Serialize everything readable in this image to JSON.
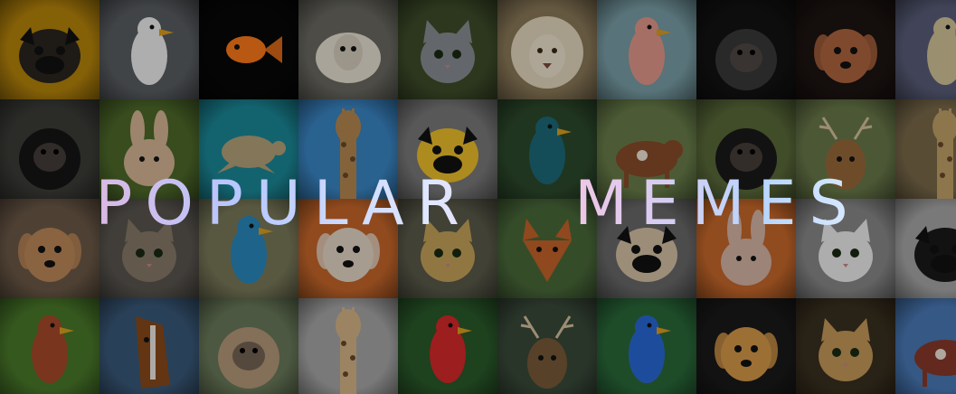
{
  "banner": {
    "title_word_1": "POPULAR",
    "title_word_2": "MEMES"
  },
  "tiles": [
    {
      "name": "pug-yellow-tile",
      "bg": "#b8860b",
      "fg": "#2a241f",
      "icon": "pug"
    },
    {
      "name": "puffin-tile",
      "bg": "#5b5f63",
      "fg": "#f2f2f2",
      "icon": "bird"
    },
    {
      "name": "goldfish-tile",
      "bg": "#070707",
      "fg": "#ff7a1a",
      "icon": "fish"
    },
    {
      "name": "sheep-tile",
      "bg": "#6b6a62",
      "fg": "#e9e3d6",
      "icon": "sheep"
    },
    {
      "name": "cat-grey-tile",
      "bg": "#3e4d2a",
      "fg": "#8a8f95",
      "icon": "cat"
    },
    {
      "name": "lion-white-tile",
      "bg": "#8c7a59",
      "fg": "#e7dac0",
      "icon": "lion"
    },
    {
      "name": "flamingo-tile",
      "bg": "#7aa0a8",
      "fg": "#e79a8d",
      "icon": "bird"
    },
    {
      "name": "gorilla-black-tile",
      "bg": "#121212",
      "fg": "#3a3a3a",
      "icon": "ape"
    },
    {
      "name": "puppy-tile",
      "bg": "#1d1411",
      "fg": "#b06640",
      "icon": "dog"
    },
    {
      "name": "bird-sky-tile",
      "bg": "#5a5f7a",
      "fg": "#d6c79a",
      "icon": "bird"
    },
    {
      "name": "gorilla-cave-tile",
      "bg": "#3c3c38",
      "fg": "#161616",
      "icon": "ape"
    },
    {
      "name": "rabbit-tile",
      "bg": "#4e6a2a",
      "fg": "#d8b996",
      "icon": "rabbit"
    },
    {
      "name": "turtle-tile",
      "bg": "#1b8a9a",
      "fg": "#b7a47a",
      "icon": "turtle"
    },
    {
      "name": "giraffe-sky-tile",
      "bg": "#3a87c7",
      "fg": "#b88a52",
      "icon": "giraffe"
    },
    {
      "name": "pug-raincoat-tile",
      "bg": "#7a7a7a",
      "fg": "#f0c12c",
      "icon": "pug"
    },
    {
      "name": "peacock-tile",
      "bg": "#2d4a2b",
      "fg": "#1d6b7a",
      "icon": "bird"
    },
    {
      "name": "cow-field-tile",
      "bg": "#6a7f4a",
      "fg": "#8a4b2a",
      "icon": "cow"
    },
    {
      "name": "tamarin-tile",
      "bg": "#5a6a3a",
      "fg": "#1a1a1a",
      "icon": "ape"
    },
    {
      "name": "deer-tile",
      "bg": "#6a7a4a",
      "fg": "#9a6a3a",
      "icon": "deer"
    },
    {
      "name": "giraffe-tall-tile",
      "bg": "#7a6a4a",
      "fg": "#c4a26a",
      "icon": "giraffe"
    },
    {
      "name": "dog-brown-tile",
      "bg": "#6d5a48",
      "fg": "#c08a5a",
      "icon": "dog"
    },
    {
      "name": "tabby-cat-tile",
      "bg": "#5a5650",
      "fg": "#8a7a6a",
      "icon": "cat"
    },
    {
      "name": "kingfisher-tile",
      "bg": "#7a7a5a",
      "fg": "#2a8ac0",
      "icon": "bird"
    },
    {
      "name": "chihuahua-tile",
      "bg": "#c8672a",
      "fg": "#e8d8c8",
      "icon": "dog"
    },
    {
      "name": "leopard-tile",
      "bg": "#5a5a4a",
      "fg": "#c8a65a",
      "icon": "cat"
    },
    {
      "name": "fox-tile",
      "bg": "#4a6a3a",
      "fg": "#c8652a",
      "icon": "fox"
    },
    {
      "name": "pug-tongue-tile",
      "bg": "#6a6a6a",
      "fg": "#d8c4a8",
      "icon": "pug"
    },
    {
      "name": "bunny-tile",
      "bg": "#c8682a",
      "fg": "#d8b8a8",
      "icon": "rabbit"
    },
    {
      "name": "white-cat-tile",
      "bg": "#8a8a8a",
      "fg": "#f0f0f0",
      "icon": "cat"
    },
    {
      "name": "pug-dark-tile",
      "bg": "#a8a8a8",
      "fg": "#1a1a1a",
      "icon": "pug"
    },
    {
      "name": "rooster-tile",
      "bg": "#4a7a2a",
      "fg": "#a84a2a",
      "icon": "bird"
    },
    {
      "name": "horse-tile",
      "bg": "#3a5a7a",
      "fg": "#8a4a1a",
      "icon": "horse"
    },
    {
      "name": "monkey-tile",
      "bg": "#6a7a5a",
      "fg": "#b89a7a",
      "icon": "ape"
    },
    {
      "name": "giraffe-face-tile",
      "bg": "#a8a8a8",
      "fg": "#d8b888",
      "icon": "giraffe"
    },
    {
      "name": "parrot-tile",
      "bg": "#2a5a2a",
      "fg": "#d82a2a",
      "icon": "bird"
    },
    {
      "name": "deer-antler-tile",
      "bg": "#3a4a3a",
      "fg": "#7a5a3a",
      "icon": "deer"
    },
    {
      "name": "lorikeet-tile",
      "bg": "#2a6a3a",
      "fg": "#2a6ad8",
      "icon": "bird"
    },
    {
      "name": "sunglasses-dog-tile",
      "bg": "#1a1a1a",
      "fg": "#d89a4a",
      "icon": "dog"
    },
    {
      "name": "lynx-tile",
      "bg": "#3a3020",
      "fg": "#c89a5a",
      "icon": "cat"
    },
    {
      "name": "cow-sky-tile",
      "bg": "#4a7ab8",
      "fg": "#8a3a2a",
      "icon": "cow"
    }
  ]
}
